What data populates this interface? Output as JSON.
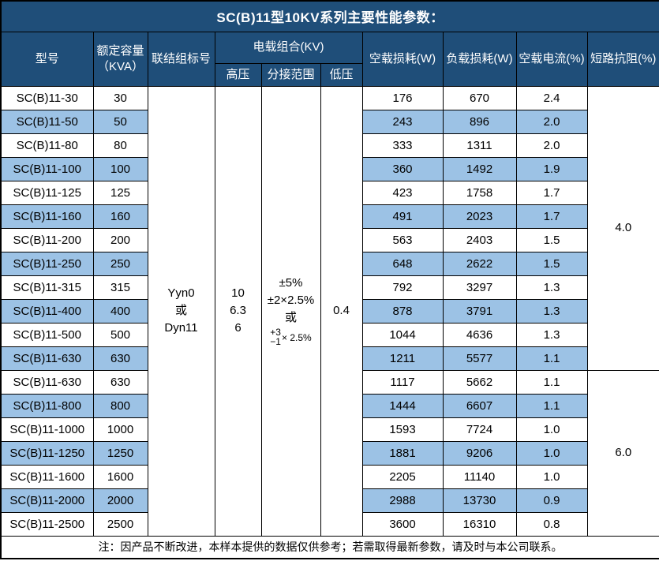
{
  "title": "SC(B)11型10KV系列主要性能参数：",
  "footer_note": "注：因产品不断改进，本样本提供的数据仅供参考；若需取得最新参数，请及时与本公司联系。",
  "colors": {
    "header_bg": "#1F4E79",
    "header_text": "#FFFFFF",
    "row_alt_bg": "#9CC2E5",
    "row_bg": "#FFFFFF",
    "border": "#000000",
    "text": "#000000"
  },
  "table": {
    "headers": {
      "model": "型号",
      "capacity_lines": [
        "额定容量",
        "（KVA）"
      ],
      "connection": "联结组标号",
      "voltage_group": "电载组合(KV)",
      "hv": "高压",
      "tap_range": "分接范围",
      "lv": "低压",
      "no_load_loss": "空载损耗(W)",
      "load_loss": "负载损耗(W)",
      "no_load_current": "空载电流(%)",
      "impedance": "短路抗阻(%)"
    },
    "merged": {
      "connection_lines": [
        "Yyn0",
        "或",
        "Dyn11"
      ],
      "hv_lines": [
        "10",
        "6.3",
        "6"
      ],
      "tap_line1": "±5%",
      "tap_line2": "±2×2.5%",
      "tap_line3": "或",
      "tap_stack_top": "+3",
      "tap_stack_bottom": "−1",
      "tap_stack_suffix": "× 2.5%",
      "lv": "0.4"
    },
    "impedance_groups": [
      {
        "value": "4.0",
        "row_span": 12
      },
      {
        "value": "6.0",
        "row_span": 7
      }
    ],
    "rows": [
      {
        "model": "SC(B)11-30",
        "capacity": "30",
        "no_load_loss": "176",
        "load_loss": "670",
        "no_load_current": "2.4",
        "shaded": false
      },
      {
        "model": "SC(B)11-50",
        "capacity": "50",
        "no_load_loss": "243",
        "load_loss": "896",
        "no_load_current": "2.0",
        "shaded": true
      },
      {
        "model": "SC(B)11-80",
        "capacity": "80",
        "no_load_loss": "333",
        "load_loss": "1311",
        "no_load_current": "2.0",
        "shaded": false
      },
      {
        "model": "SC(B)11-100",
        "capacity": "100",
        "no_load_loss": "360",
        "load_loss": "1492",
        "no_load_current": "1.9",
        "shaded": true
      },
      {
        "model": "SC(B)11-125",
        "capacity": "125",
        "no_load_loss": "423",
        "load_loss": "1758",
        "no_load_current": "1.7",
        "shaded": false
      },
      {
        "model": "SC(B)11-160",
        "capacity": "160",
        "no_load_loss": "491",
        "load_loss": "2023",
        "no_load_current": "1.7",
        "shaded": true
      },
      {
        "model": "SC(B)11-200",
        "capacity": "200",
        "no_load_loss": "563",
        "load_loss": "2403",
        "no_load_current": "1.5",
        "shaded": false
      },
      {
        "model": "SC(B)11-250",
        "capacity": "250",
        "no_load_loss": "648",
        "load_loss": "2622",
        "no_load_current": "1.5",
        "shaded": true
      },
      {
        "model": "SC(B)11-315",
        "capacity": "315",
        "no_load_loss": "792",
        "load_loss": "3297",
        "no_load_current": "1.3",
        "shaded": false
      },
      {
        "model": "SC(B)11-400",
        "capacity": "400",
        "no_load_loss": "878",
        "load_loss": "3791",
        "no_load_current": "1.3",
        "shaded": true
      },
      {
        "model": "SC(B)11-500",
        "capacity": "500",
        "no_load_loss": "1044",
        "load_loss": "4636",
        "no_load_current": "1.3",
        "shaded": false
      },
      {
        "model": "SC(B)11-630",
        "capacity": "630",
        "no_load_loss": "1211",
        "load_loss": "5577",
        "no_load_current": "1.1",
        "shaded": true
      },
      {
        "model": "SC(B)11-630",
        "capacity": "630",
        "no_load_loss": "1117",
        "load_loss": "5662",
        "no_load_current": "1.1",
        "shaded": false
      },
      {
        "model": "SC(B)11-800",
        "capacity": "800",
        "no_load_loss": "1444",
        "load_loss": "6607",
        "no_load_current": "1.1",
        "shaded": true
      },
      {
        "model": "SC(B)11-1000",
        "capacity": "1000",
        "no_load_loss": "1593",
        "load_loss": "7724",
        "no_load_current": "1.0",
        "shaded": false
      },
      {
        "model": "SC(B)11-1250",
        "capacity": "1250",
        "no_load_loss": "1881",
        "load_loss": "9206",
        "no_load_current": "1.0",
        "shaded": true
      },
      {
        "model": "SC(B)11-1600",
        "capacity": "1600",
        "no_load_loss": "2205",
        "load_loss": "11140",
        "no_load_current": "1.0",
        "shaded": false
      },
      {
        "model": "SC(B)11-2000",
        "capacity": "2000",
        "no_load_loss": "2988",
        "load_loss": "13730",
        "no_load_current": "0.9",
        "shaded": true
      },
      {
        "model": "SC(B)11-2500",
        "capacity": "2500",
        "no_load_loss": "3600",
        "load_loss": "16310",
        "no_load_current": "0.8",
        "shaded": false
      }
    ]
  }
}
